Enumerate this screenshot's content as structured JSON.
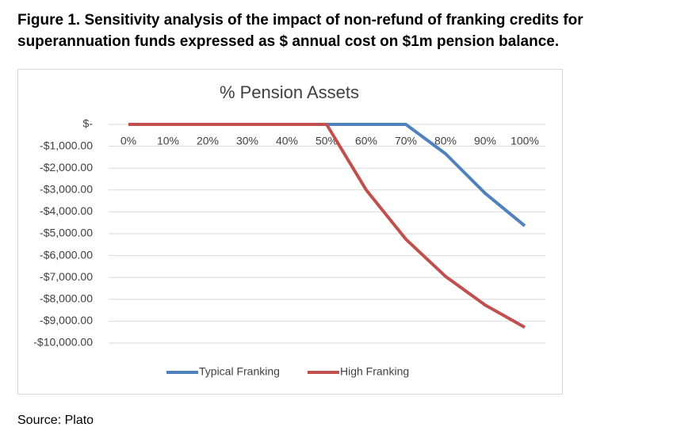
{
  "caption": "Figure 1.  Sensitivity analysis of the impact of non-refund of franking credits for superannuation funds expressed as $ annual cost on $1m pension balance.",
  "source": "Source: Plato",
  "chart_data": {
    "type": "line",
    "title": "% Pension Assets",
    "categories": [
      "0%",
      "10%",
      "20%",
      "30%",
      "40%",
      "50%",
      "60%",
      "70%",
      "80%",
      "90%",
      "100%"
    ],
    "series": [
      {
        "name": "Typical Franking",
        "color": "#4f81bd",
        "values": [
          0,
          0,
          0,
          0,
          0,
          0,
          0,
          0,
          -1340,
          -3150,
          -4640
        ]
      },
      {
        "name": "High Franking",
        "color": "#c0504d",
        "values": [
          0,
          0,
          0,
          0,
          0,
          0,
          -3000,
          -5250,
          -6950,
          -8260,
          -9280
        ]
      }
    ],
    "ylim": [
      -10000,
      0
    ],
    "yticks": [
      {
        "value": 0,
        "label": "$-"
      },
      {
        "value": -1000,
        "label": "-$1,000.00"
      },
      {
        "value": -2000,
        "label": "-$2,000.00"
      },
      {
        "value": -3000,
        "label": "-$3,000.00"
      },
      {
        "value": -4000,
        "label": "-$4,000.00"
      },
      {
        "value": -5000,
        "label": "-$5,000.00"
      },
      {
        "value": -6000,
        "label": "-$6,000.00"
      },
      {
        "value": -7000,
        "label": "-$7,000.00"
      },
      {
        "value": -8000,
        "label": "-$8,000.00"
      },
      {
        "value": -9000,
        "label": "-$9,000.00"
      },
      {
        "value": -10000,
        "label": "-$10,000.00"
      }
    ],
    "grid": true,
    "legend": "bottom"
  }
}
